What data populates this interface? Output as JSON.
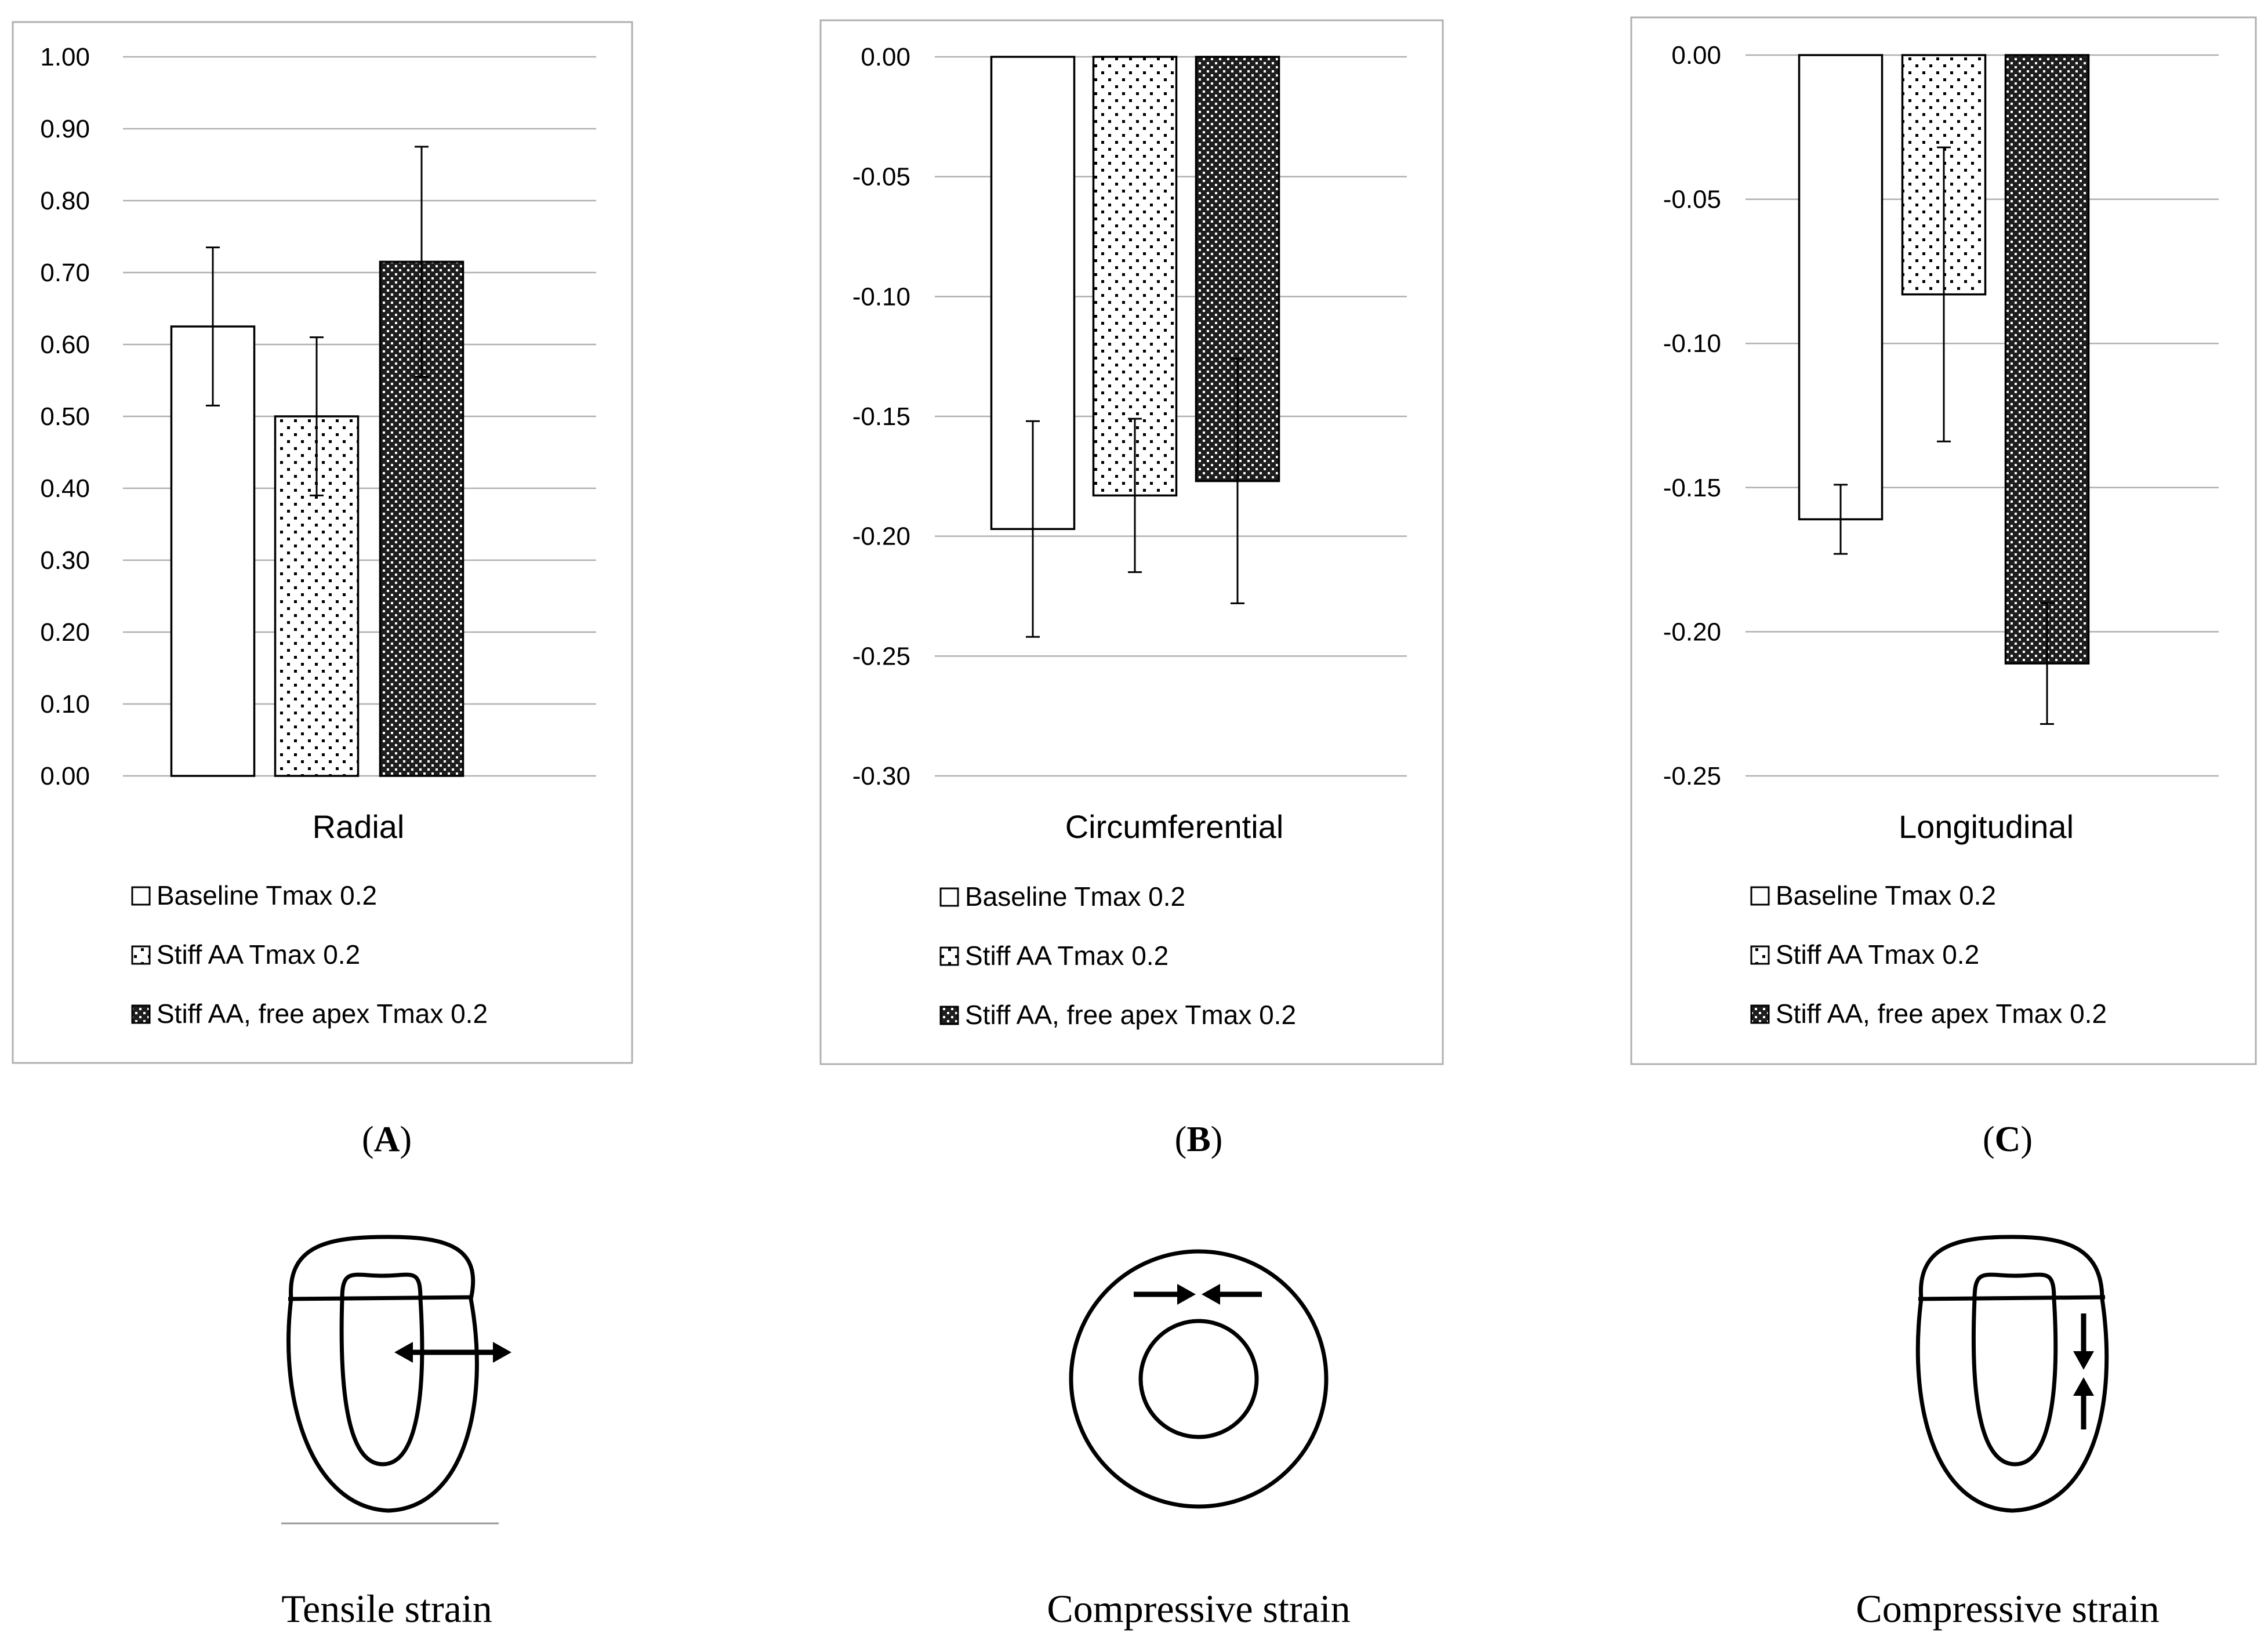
{
  "chart_data": [
    {
      "type": "bar",
      "panel_label": "A",
      "title": "Radial",
      "categories": [
        "Baseline Tmax 0.2",
        "Stiff AA Tmax 0.2",
        "Stiff AA, free apex Tmax 0.2"
      ],
      "values": [
        0.625,
        0.5,
        0.715
      ],
      "errors": [
        0.11,
        0.11,
        0.16
      ],
      "ylim": [
        0,
        1.0
      ],
      "yticks": [
        "1.00",
        "0.90",
        "0.80",
        "0.70",
        "0.60",
        "0.50",
        "0.40",
        "0.30",
        "0.20",
        "0.10",
        "0.00"
      ],
      "ytick_values": [
        1.0,
        0.9,
        0.8,
        0.7,
        0.6,
        0.5,
        0.4,
        0.3,
        0.2,
        0.1,
        0.0
      ],
      "legend": [
        "Baseline Tmax 0.2",
        "Stiff AA Tmax 0.2",
        "Stiff AA, free apex Tmax 0.2"
      ],
      "grid": true,
      "legend_position": "bottom"
    },
    {
      "type": "bar",
      "panel_label": "B",
      "title": "Circumferential",
      "categories": [
        "Baseline Tmax 0.2",
        "Stiff AA Tmax 0.2",
        "Stiff AA, free apex Tmax 0.2"
      ],
      "values": [
        -0.197,
        -0.183,
        -0.177
      ],
      "errors": [
        0.045,
        0.032,
        0.051
      ],
      "ylim": [
        -0.3,
        0.0
      ],
      "yticks": [
        "0.00",
        "-0.05",
        "-0.10",
        "-0.15",
        "-0.20",
        "-0.25",
        "-0.30"
      ],
      "ytick_values": [
        0.0,
        -0.05,
        -0.1,
        -0.15,
        -0.2,
        -0.25,
        -0.3
      ],
      "legend": [
        "Baseline Tmax 0.2",
        "Stiff AA Tmax 0.2",
        "Stiff AA, free apex Tmax 0.2"
      ],
      "grid": true,
      "legend_position": "bottom"
    },
    {
      "type": "bar",
      "panel_label": "C",
      "title": "Longitudinal",
      "categories": [
        "Baseline Tmax 0.2",
        "Stiff AA Tmax 0.2",
        "Stiff AA, free apex Tmax 0.2"
      ],
      "values": [
        -0.161,
        -0.083,
        -0.211
      ],
      "errors": [
        0.012,
        0.051,
        0.021
      ],
      "ylim": [
        -0.25,
        0.0
      ],
      "yticks": [
        "0.00",
        "-0.05",
        "-0.10",
        "-0.15",
        "-0.20",
        "-0.25"
      ],
      "ytick_values": [
        0.0,
        -0.05,
        -0.1,
        -0.15,
        -0.2,
        -0.25
      ],
      "legend": [
        "Baseline Tmax 0.2",
        "Stiff AA Tmax 0.2",
        "Stiff AA, free apex Tmax 0.2"
      ],
      "grid": true,
      "legend_position": "bottom"
    }
  ],
  "captions": [
    "Tensile strain",
    "Compressive strain",
    "Compressive strain"
  ],
  "colors": {
    "grid": "#b0b0b0",
    "bar_outline": "#000000",
    "frame": "#b0b0b0"
  }
}
